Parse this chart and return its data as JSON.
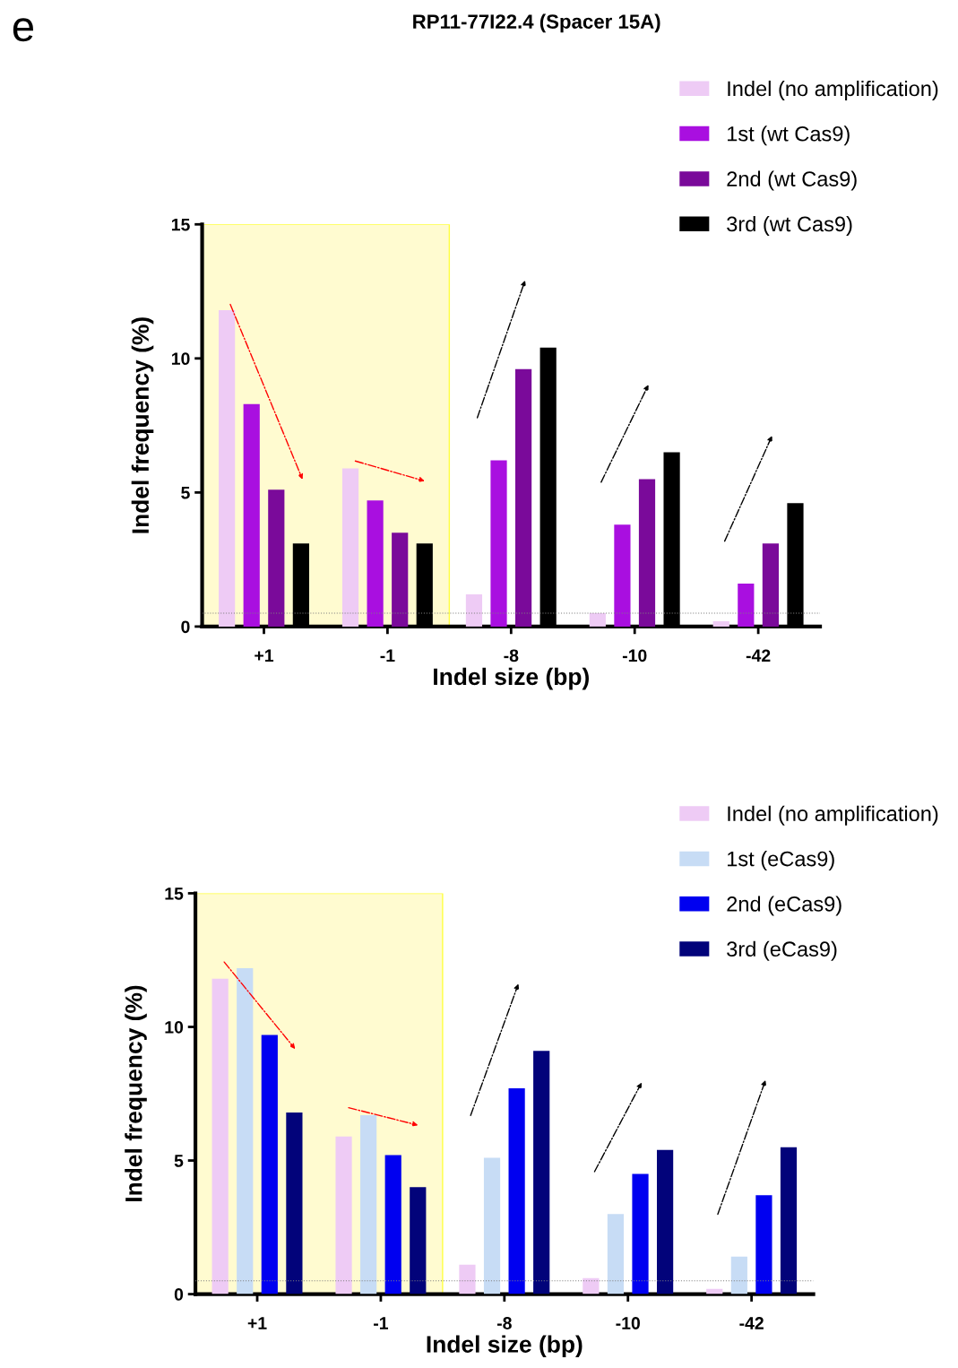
{
  "chart_data": [
    {
      "type": "bar",
      "title": "RP11-77I22.4 (Spacer 15A)",
      "xlabel": "Indel size (bp)",
      "ylabel": "Indel frequency (%)",
      "categories": [
        "+1",
        "-1",
        "-8",
        "-10",
        "-42"
      ],
      "series": [
        {
          "name": "Indel (no amplification)",
          "color": "#eecbf5",
          "values": [
            11.8,
            5.9,
            1.2,
            0.5,
            0.2
          ]
        },
        {
          "name": "1st (wt Cas9)",
          "color": "#a90fe0",
          "values": [
            8.3,
            4.7,
            6.2,
            3.8,
            1.6
          ]
        },
        {
          "name": "2nd (wt Cas9)",
          "color": "#7a0a9a",
          "values": [
            5.1,
            3.5,
            9.6,
            5.5,
            3.1
          ]
        },
        {
          "name": "3rd (wt Cas9)",
          "color": "#000000",
          "values": [
            3.1,
            3.1,
            10.4,
            6.5,
            4.6
          ]
        }
      ],
      "ylim": [
        0,
        15
      ],
      "yticks": [
        0,
        5,
        10,
        15
      ],
      "grid": false,
      "legend": "top right",
      "ref_lines": [
        {
          "axis": "y",
          "value": 0.5,
          "color": "#808080",
          "line_style": "dotted"
        }
      ],
      "bands": [
        {
          "axis": "x",
          "from": "+1",
          "to": "-1",
          "color": "#fffbd0"
        }
      ],
      "annotations": [
        "e"
      ]
    },
    {
      "type": "bar",
      "xlabel": "Indel size (bp)",
      "ylabel": "Indel frequency (%)",
      "categories": [
        "+1",
        "-1",
        "-8",
        "-10",
        "-42"
      ],
      "series": [
        {
          "name": "Indel (no amplification)",
          "color": "#eecbf5",
          "values": [
            11.8,
            5.9,
            1.1,
            0.6,
            0.2
          ]
        },
        {
          "name": "1st (eCas9)",
          "color": "#c7dcf5",
          "values": [
            12.2,
            6.7,
            5.1,
            3.0,
            1.4
          ]
        },
        {
          "name": "2nd (eCas9)",
          "color": "#0000f0",
          "values": [
            9.7,
            5.2,
            7.7,
            4.5,
            3.7
          ]
        },
        {
          "name": "3rd (eCas9)",
          "color": "#02037a",
          "values": [
            6.8,
            4.0,
            9.1,
            5.4,
            5.5
          ]
        }
      ],
      "ylim": [
        0,
        15
      ],
      "yticks": [
        0,
        5,
        10,
        15
      ],
      "grid": false,
      "legend": "top right",
      "ref_lines": [
        {
          "axis": "y",
          "value": 0.5,
          "color": "#808080",
          "line_style": "dotted"
        }
      ],
      "bands": [
        {
          "axis": "x",
          "from": "+1",
          "to": "-1",
          "color": "#fffbd0"
        }
      ]
    }
  ]
}
